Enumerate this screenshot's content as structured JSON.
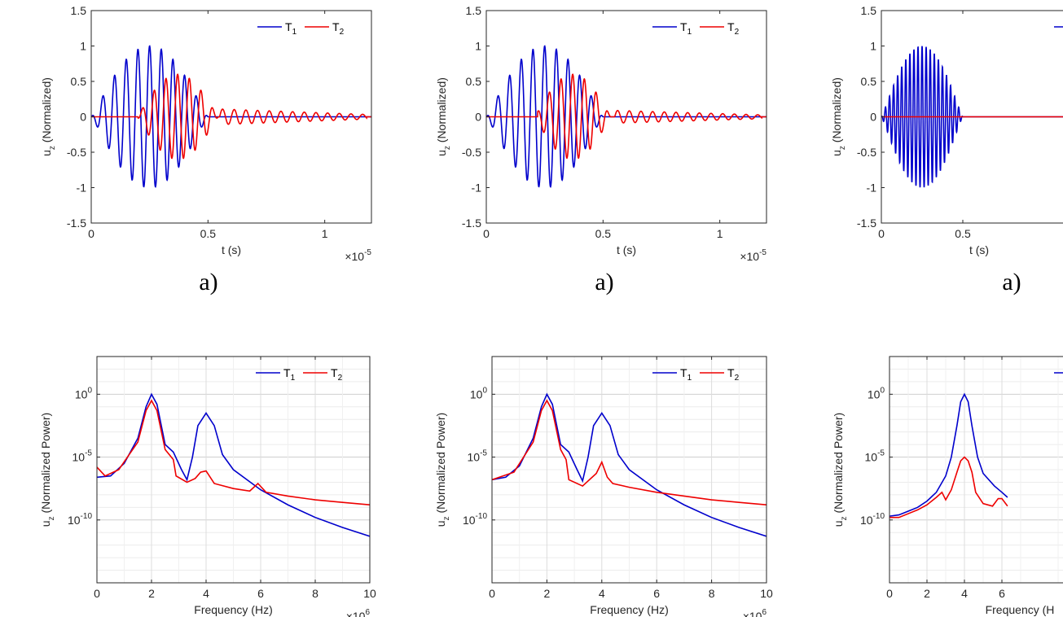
{
  "colors": {
    "T1": "#0000cc",
    "T2": "#ee0000",
    "axis": "#262626",
    "grid": "#dcdcdc"
  },
  "chart_data": [
    {
      "type": "line",
      "panel": "time-1",
      "caption": "a)",
      "xlabel": "t (s)",
      "ylabel_main": "u",
      "ylabel_sub": "z",
      "ylabel_rest": " (Normalized)",
      "x_multiplier_base": "×10",
      "x_multiplier_exp": "-5",
      "xlim": [
        0,
        1.2
      ],
      "ylim": [
        -1.5,
        1.5
      ],
      "xticks": [
        0,
        0.5,
        1
      ],
      "xtick_labels": [
        "0",
        "0.5",
        "1"
      ],
      "yticks": [
        -1.5,
        -1,
        -0.5,
        0,
        0.5,
        1,
        1.5
      ],
      "ytick_labels": [
        "-1.5",
        "-1",
        "-0.5",
        "0",
        "0.5",
        "1",
        "1.5"
      ],
      "grid": false,
      "legend": "top-right",
      "series": [
        {
          "name": "T",
          "sub": "1",
          "color_key": "T1",
          "start": 0.0,
          "end": 0.5,
          "center": 0.25,
          "freq": 20,
          "amp": 1.0,
          "tail_end": 0,
          "tail_amp": 0
        },
        {
          "name": "T",
          "sub": "2",
          "color_key": "T2",
          "start": 0.2,
          "end": 0.55,
          "center": 0.37,
          "freq": 20,
          "amp": 0.6,
          "tail_end": 1.18,
          "tail_amp": 0.11
        }
      ]
    },
    {
      "type": "line",
      "panel": "time-2",
      "caption": "a)",
      "xlabel": "t (s)",
      "ylabel_main": "u",
      "ylabel_sub": "z",
      "ylabel_rest": " (Normalized)",
      "x_multiplier_base": "×10",
      "x_multiplier_exp": "-5",
      "xlim": [
        0,
        1.2
      ],
      "ylim": [
        -1.5,
        1.5
      ],
      "xticks": [
        0,
        0.5,
        1
      ],
      "xtick_labels": [
        "0",
        "0.5",
        "1"
      ],
      "yticks": [
        -1.5,
        -1,
        -0.5,
        0,
        0.5,
        1,
        1.5
      ],
      "ytick_labels": [
        "-1.5",
        "-1",
        "-0.5",
        "0",
        "0.5",
        "1",
        "1.5"
      ],
      "grid": false,
      "legend": "top-right",
      "series": [
        {
          "name": "T",
          "sub": "1",
          "color_key": "T1",
          "start": 0.0,
          "end": 0.5,
          "center": 0.25,
          "freq": 20,
          "amp": 1.0,
          "tail_end": 0,
          "tail_amp": 0
        },
        {
          "name": "T",
          "sub": "2",
          "color_key": "T2",
          "start": 0.22,
          "end": 0.55,
          "center": 0.37,
          "freq": 20,
          "amp": 0.6,
          "tail_end": 1.18,
          "tail_amp": 0.09
        }
      ]
    },
    {
      "type": "line",
      "panel": "time-3",
      "caption": "a)",
      "xlabel": "t (s)",
      "ylabel_main": "u",
      "ylabel_sub": "z",
      "ylabel_rest": " (Normalized)",
      "x_multiplier_base": "",
      "x_multiplier_exp": "",
      "xlim": [
        0,
        1.2
      ],
      "ylim": [
        -1.5,
        1.5
      ],
      "xticks": [
        0,
        0.5
      ],
      "xtick_labels": [
        "0",
        "0.5"
      ],
      "yticks": [
        -1.5,
        -1,
        -0.5,
        0,
        0.5,
        1,
        1.5
      ],
      "ytick_labels": [
        "-1.5",
        "-1",
        "-0.5",
        "0",
        "0.5",
        "1",
        "1.5"
      ],
      "grid": false,
      "legend": "top-right",
      "series": [
        {
          "name": "",
          "sub": "",
          "color_key": "T1",
          "start": 0.0,
          "end": 0.5,
          "center": 0.25,
          "freq": 40,
          "amp": 1.0,
          "tail_end": 0,
          "tail_amp": 0
        },
        {
          "name": "",
          "sub": "",
          "color_key": "T2",
          "start": 0.0,
          "end": 0.0,
          "center": 0.0,
          "freq": 40,
          "amp": 0.0,
          "tail_end": 0,
          "tail_amp": 0
        }
      ]
    },
    {
      "type": "line",
      "panel": "spec-1",
      "caption": "",
      "xlabel": "Frequency (Hz)",
      "ylabel_main": "u",
      "ylabel_sub": "z",
      "ylabel_rest": " (Normalized Power)",
      "x_multiplier_base": "×10",
      "x_multiplier_exp": "6",
      "xlim": [
        0,
        10
      ],
      "ylim": [
        -15,
        3
      ],
      "y_scale": "log",
      "xticks": [
        0,
        2,
        4,
        6,
        8,
        10
      ],
      "xtick_labels": [
        "0",
        "2",
        "4",
        "6",
        "8",
        "10"
      ],
      "yticks": [
        0,
        -5,
        -10
      ],
      "ytick_base": "10",
      "ytick_exps": [
        "0",
        "-5",
        "-10"
      ],
      "grid": true,
      "legend": "top-right",
      "series": [
        {
          "name": "T",
          "sub": "1",
          "color_key": "T1",
          "points": [
            [
              0,
              -6.6
            ],
            [
              0.5,
              -6.5
            ],
            [
              1.0,
              -5.5
            ],
            [
              1.5,
              -3.5
            ],
            [
              1.8,
              -1.0
            ],
            [
              2.0,
              0.0
            ],
            [
              2.2,
              -0.8
            ],
            [
              2.5,
              -4.0
            ],
            [
              2.8,
              -4.6
            ],
            [
              3.1,
              -6.0
            ],
            [
              3.3,
              -6.8
            ],
            [
              3.5,
              -5.0
            ],
            [
              3.7,
              -2.5
            ],
            [
              4.0,
              -1.5
            ],
            [
              4.3,
              -2.5
            ],
            [
              4.6,
              -4.8
            ],
            [
              5.0,
              -6.0
            ],
            [
              6.0,
              -7.6
            ],
            [
              7.0,
              -8.8
            ],
            [
              8.0,
              -9.8
            ],
            [
              9.0,
              -10.6
            ],
            [
              10.0,
              -11.3
            ]
          ]
        },
        {
          "name": "T",
          "sub": "2",
          "color_key": "T2",
          "points": [
            [
              0,
              -5.8
            ],
            [
              0.3,
              -6.5
            ],
            [
              0.8,
              -6.0
            ],
            [
              1.5,
              -3.8
            ],
            [
              1.8,
              -1.3
            ],
            [
              2.0,
              -0.5
            ],
            [
              2.2,
              -1.3
            ],
            [
              2.5,
              -4.4
            ],
            [
              2.8,
              -5.2
            ],
            [
              2.9,
              -6.5
            ],
            [
              3.3,
              -7.0
            ],
            [
              3.6,
              -6.7
            ],
            [
              3.8,
              -6.2
            ],
            [
              4.0,
              -6.1
            ],
            [
              4.3,
              -7.1
            ],
            [
              5.0,
              -7.5
            ],
            [
              5.6,
              -7.7
            ],
            [
              5.9,
              -7.1
            ],
            [
              6.2,
              -7.8
            ],
            [
              7.0,
              -8.1
            ],
            [
              8.0,
              -8.4
            ],
            [
              9.0,
              -8.6
            ],
            [
              10.0,
              -8.8
            ]
          ]
        }
      ]
    },
    {
      "type": "line",
      "panel": "spec-2",
      "caption": "",
      "xlabel": "Frequency (Hz)",
      "ylabel_main": "u",
      "ylabel_sub": "z",
      "ylabel_rest": " (Normalized Power)",
      "x_multiplier_base": "×10",
      "x_multiplier_exp": "6",
      "xlim": [
        0,
        10
      ],
      "ylim": [
        -15,
        3
      ],
      "y_scale": "log",
      "xticks": [
        0,
        2,
        4,
        6,
        8,
        10
      ],
      "xtick_labels": [
        "0",
        "2",
        "4",
        "6",
        "8",
        "10"
      ],
      "yticks": [
        0,
        -5,
        -10
      ],
      "ytick_base": "10",
      "ytick_exps": [
        "0",
        "-5",
        "-10"
      ],
      "grid": true,
      "legend": "top-right",
      "series": [
        {
          "name": "T",
          "sub": "1",
          "color_key": "T1",
          "points": [
            [
              0,
              -6.8
            ],
            [
              0.5,
              -6.6
            ],
            [
              1.0,
              -5.7
            ],
            [
              1.5,
              -3.5
            ],
            [
              1.8,
              -1.0
            ],
            [
              2.0,
              0.0
            ],
            [
              2.2,
              -0.8
            ],
            [
              2.5,
              -4.0
            ],
            [
              2.8,
              -4.6
            ],
            [
              3.1,
              -6.0
            ],
            [
              3.3,
              -6.9
            ],
            [
              3.5,
              -5.0
            ],
            [
              3.7,
              -2.5
            ],
            [
              4.0,
              -1.5
            ],
            [
              4.3,
              -2.5
            ],
            [
              4.6,
              -4.8
            ],
            [
              5.0,
              -6.0
            ],
            [
              6.0,
              -7.6
            ],
            [
              7.0,
              -8.8
            ],
            [
              8.0,
              -9.8
            ],
            [
              9.0,
              -10.6
            ],
            [
              10.0,
              -11.3
            ]
          ]
        },
        {
          "name": "T",
          "sub": "2",
          "color_key": "T2",
          "points": [
            [
              0,
              -6.8
            ],
            [
              0.8,
              -6.2
            ],
            [
              1.5,
              -3.8
            ],
            [
              1.8,
              -1.3
            ],
            [
              2.0,
              -0.5
            ],
            [
              2.2,
              -1.3
            ],
            [
              2.5,
              -4.4
            ],
            [
              2.7,
              -5.2
            ],
            [
              2.8,
              -6.8
            ],
            [
              3.3,
              -7.3
            ],
            [
              3.8,
              -6.3
            ],
            [
              4.0,
              -5.4
            ],
            [
              4.2,
              -6.6
            ],
            [
              4.4,
              -7.1
            ],
            [
              5.0,
              -7.4
            ],
            [
              6.0,
              -7.8
            ],
            [
              7.0,
              -8.1
            ],
            [
              8.0,
              -8.4
            ],
            [
              9.0,
              -8.6
            ],
            [
              10.0,
              -8.8
            ]
          ]
        }
      ]
    },
    {
      "type": "line",
      "panel": "spec-3",
      "caption": "",
      "xlabel": "Frequency (H",
      "ylabel_main": "u",
      "ylabel_sub": "z",
      "ylabel_rest": " (Normalized Power)",
      "x_multiplier_base": "",
      "x_multiplier_exp": "",
      "xlim": [
        0,
        10
      ],
      "ylim": [
        -15,
        3
      ],
      "y_scale": "log",
      "xticks": [
        0,
        2,
        4,
        6
      ],
      "xtick_labels": [
        "0",
        "2",
        "4",
        "6"
      ],
      "yticks": [
        0,
        -5,
        -10
      ],
      "ytick_base": "10",
      "ytick_exps": [
        "0",
        "-5",
        "-10"
      ],
      "grid": true,
      "legend": "top-right",
      "series": [
        {
          "name": "",
          "sub": "",
          "color_key": "T1",
          "points": [
            [
              0,
              -9.7
            ],
            [
              0.5,
              -9.6
            ],
            [
              1.0,
              -9.3
            ],
            [
              1.5,
              -9.0
            ],
            [
              2.0,
              -8.5
            ],
            [
              2.5,
              -7.8
            ],
            [
              3.0,
              -6.5
            ],
            [
              3.3,
              -5.0
            ],
            [
              3.6,
              -2.5
            ],
            [
              3.8,
              -0.6
            ],
            [
              4.0,
              0.0
            ],
            [
              4.2,
              -0.6
            ],
            [
              4.4,
              -2.5
            ],
            [
              4.7,
              -5.0
            ],
            [
              5.0,
              -6.3
            ],
            [
              5.6,
              -7.3
            ],
            [
              6.0,
              -7.8
            ],
            [
              6.3,
              -8.2
            ]
          ]
        },
        {
          "name": "",
          "sub": "",
          "color_key": "T2",
          "points": [
            [
              0,
              -9.8
            ],
            [
              0.5,
              -9.8
            ],
            [
              1.0,
              -9.5
            ],
            [
              1.5,
              -9.2
            ],
            [
              2.0,
              -8.8
            ],
            [
              2.5,
              -8.2
            ],
            [
              2.8,
              -7.8
            ],
            [
              3.0,
              -8.4
            ],
            [
              3.3,
              -7.6
            ],
            [
              3.6,
              -6.2
            ],
            [
              3.8,
              -5.3
            ],
            [
              4.0,
              -5.0
            ],
            [
              4.2,
              -5.3
            ],
            [
              4.4,
              -6.2
            ],
            [
              4.6,
              -7.8
            ],
            [
              5.0,
              -8.7
            ],
            [
              5.5,
              -8.9
            ],
            [
              5.8,
              -8.3
            ],
            [
              6.0,
              -8.3
            ],
            [
              6.3,
              -8.9
            ]
          ]
        }
      ]
    }
  ]
}
